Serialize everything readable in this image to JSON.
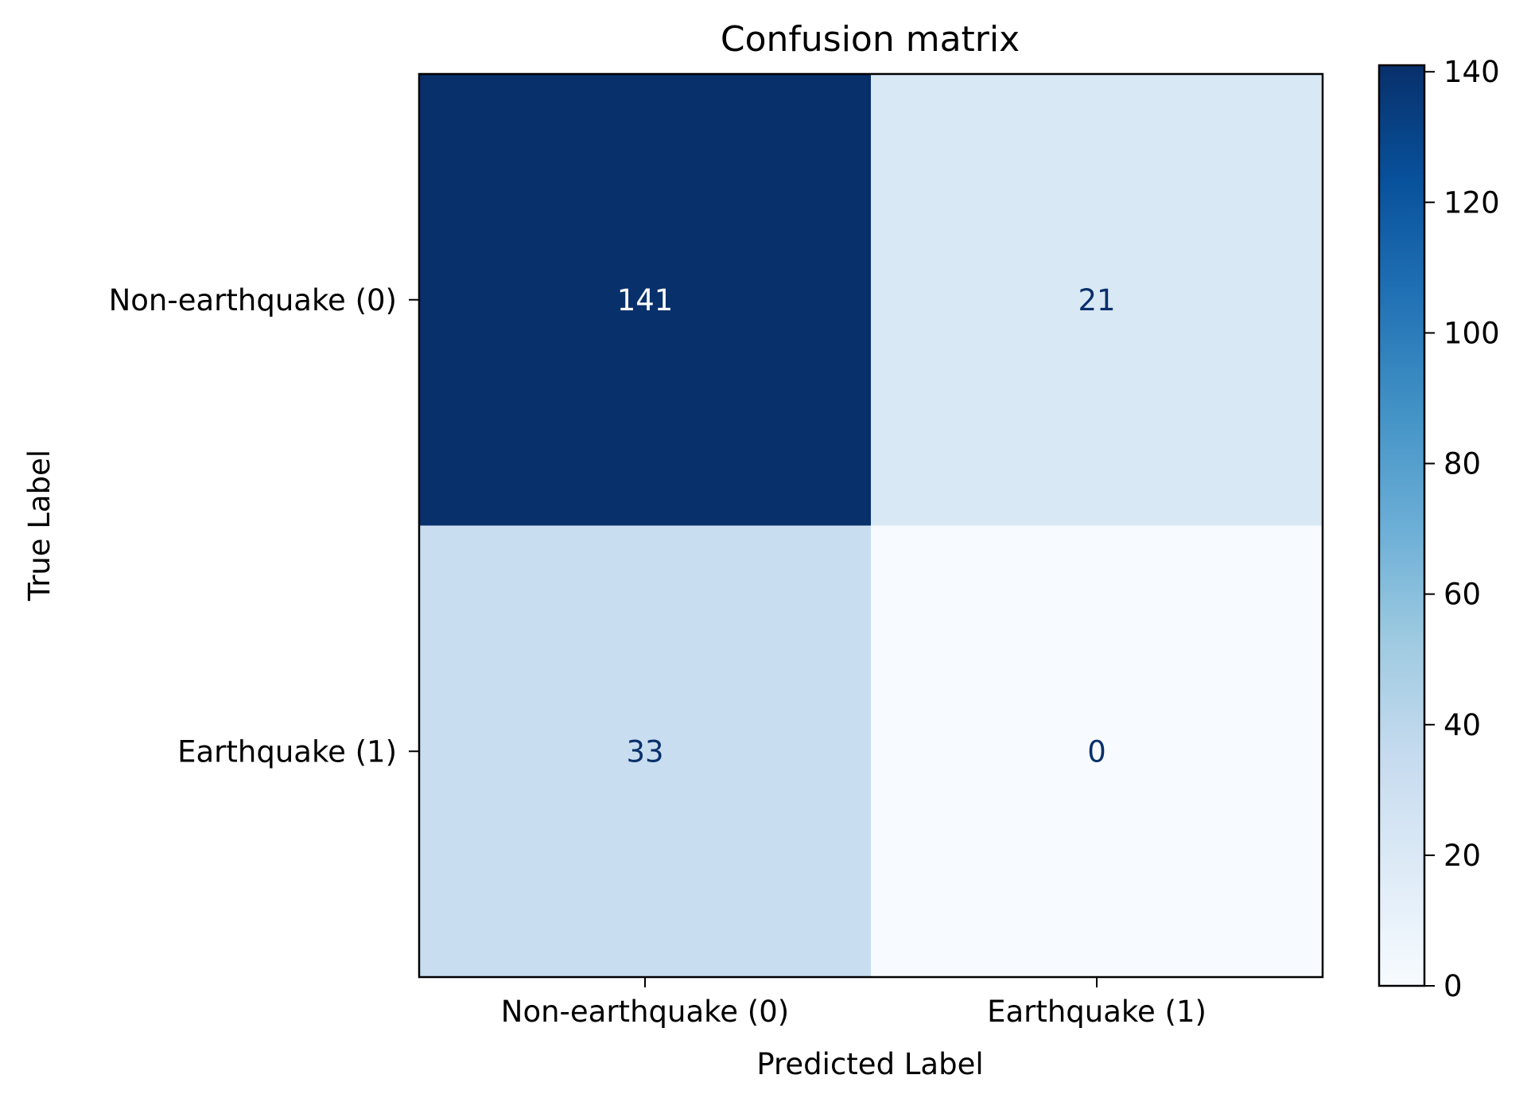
{
  "chart_data": {
    "type": "heatmap",
    "title": "Confusion matrix",
    "xlabel": "Predicted Label",
    "ylabel": "True Label",
    "x_categories": [
      "Non-earthquake (0)",
      "Earthquake (1)"
    ],
    "y_categories": [
      "Non-earthquake (0)",
      "Earthquake (1)"
    ],
    "matrix": [
      [
        141,
        21
      ],
      [
        33,
        0
      ]
    ],
    "colormap": "Blues",
    "colorbar": {
      "min": 0,
      "max": 141,
      "ticks": [
        0,
        20,
        40,
        60,
        80,
        100,
        120,
        140
      ]
    },
    "colorbar_ticks": [
      "0",
      "20",
      "40",
      "60",
      "80",
      "100",
      "120",
      "140"
    ],
    "colors": {
      "dark_text": "#08306b",
      "light_text": "#ffffff",
      "palette": [
        "#f7fbff",
        "#deebf7",
        "#c6dbef",
        "#9ecae1",
        "#6baed6",
        "#4292c6",
        "#2171b5",
        "#08519c",
        "#08306b"
      ]
    }
  }
}
